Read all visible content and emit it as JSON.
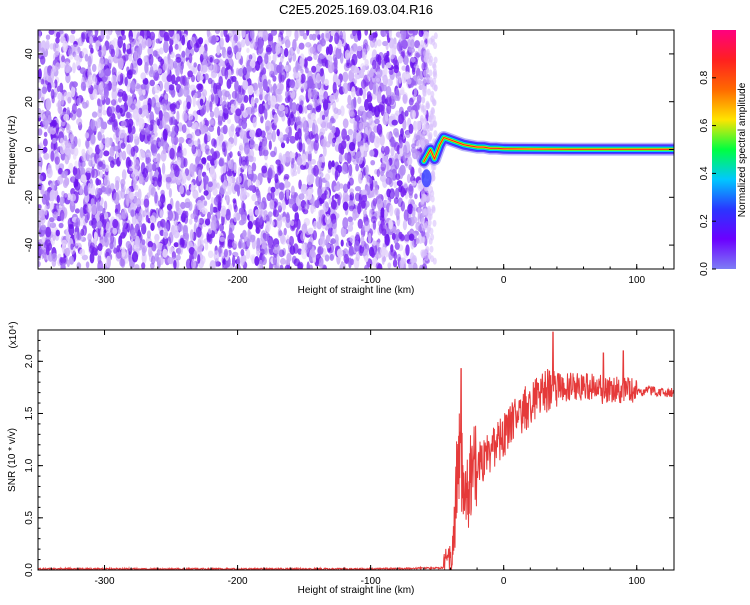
{
  "figure_title": "C2E5.2025.169.03.04.R16",
  "colors": {
    "plot_line": "#e53a3a",
    "noise_purple": "#7a28f0",
    "colorbar_stops": [
      "#7d7df5",
      "#6b00ff",
      "#2a36ff",
      "#00c8ff",
      "#00ff40",
      "#ffe400",
      "#ff6a00",
      "#ff2020",
      "#ff007f"
    ]
  },
  "chart_data": [
    {
      "type": "heatmap",
      "xlabel": "Height of straight line (km)",
      "ylabel": "Frequency (Hz)",
      "xlim": [
        -350,
        128
      ],
      "ylim": [
        -50,
        50
      ],
      "x_ticks": [
        -300,
        -200,
        -100,
        0,
        100
      ],
      "x_tick_labels": [
        "-300",
        "-200",
        "-100",
        "0",
        "100"
      ],
      "y_ticks": [
        -40,
        -20,
        0,
        20,
        40
      ],
      "y_tick_labels": [
        "-40",
        "-20",
        "0",
        "20",
        "40"
      ],
      "noise_region_x": [
        -350,
        -57
      ],
      "signal_trace": {
        "x": [
          -60,
          -55,
          -52,
          -48,
          -45,
          -40,
          -35,
          -30,
          -25,
          -20,
          -15,
          -10,
          -5,
          0,
          20,
          50,
          80,
          100,
          128
        ],
        "y": [
          -5,
          0,
          -4,
          2,
          5,
          4,
          3,
          2,
          1.5,
          1,
          1,
          0.5,
          0.5,
          0.3,
          0.2,
          0.1,
          0.1,
          0.1,
          0.1
        ]
      },
      "colorbar": {
        "label": "Normalized spectral amplitude",
        "range": [
          0,
          1
        ],
        "ticks": [
          0.0,
          0.2,
          0.4,
          0.6,
          0.8
        ],
        "tick_labels": [
          "0.0",
          "0.2",
          "0.4",
          "0.6",
          "0.8"
        ]
      }
    },
    {
      "type": "line",
      "xlabel": "Height of straight line (km)",
      "ylabel": "SNR (10 * v/v)",
      "y_multiplier": "(x10⁴)",
      "xlim": [
        -350,
        128
      ],
      "ylim": [
        0,
        2.3
      ],
      "x_ticks": [
        -300,
        -200,
        -100,
        0,
        100
      ],
      "x_tick_labels": [
        "-300",
        "-200",
        "-100",
        "0",
        "100"
      ],
      "y_ticks": [
        0.0,
        0.5,
        1.0,
        1.5,
        2.0
      ],
      "y_tick_labels": [
        "0.0",
        "0.5",
        "1.0",
        "1.5",
        "2.0"
      ],
      "envelope": {
        "x": [
          -350,
          -100,
          -45,
          -40,
          -37,
          -35,
          -33,
          -30,
          -25,
          -20,
          -10,
          0,
          10,
          20,
          30,
          40,
          60,
          80,
          100,
          128
        ],
        "y": [
          0.01,
          0.01,
          0.02,
          0.12,
          0.4,
          0.9,
          1.2,
          0.7,
          0.85,
          1.0,
          1.15,
          1.3,
          1.45,
          1.6,
          1.7,
          1.75,
          1.75,
          1.72,
          1.72,
          1.7
        ]
      },
      "peaks": [
        {
          "x": -32,
          "y": 1.93
        },
        {
          "x": 37,
          "y": 2.28
        },
        {
          "x": 75,
          "y": 2.08
        },
        {
          "x": 90,
          "y": 2.1
        }
      ]
    }
  ]
}
